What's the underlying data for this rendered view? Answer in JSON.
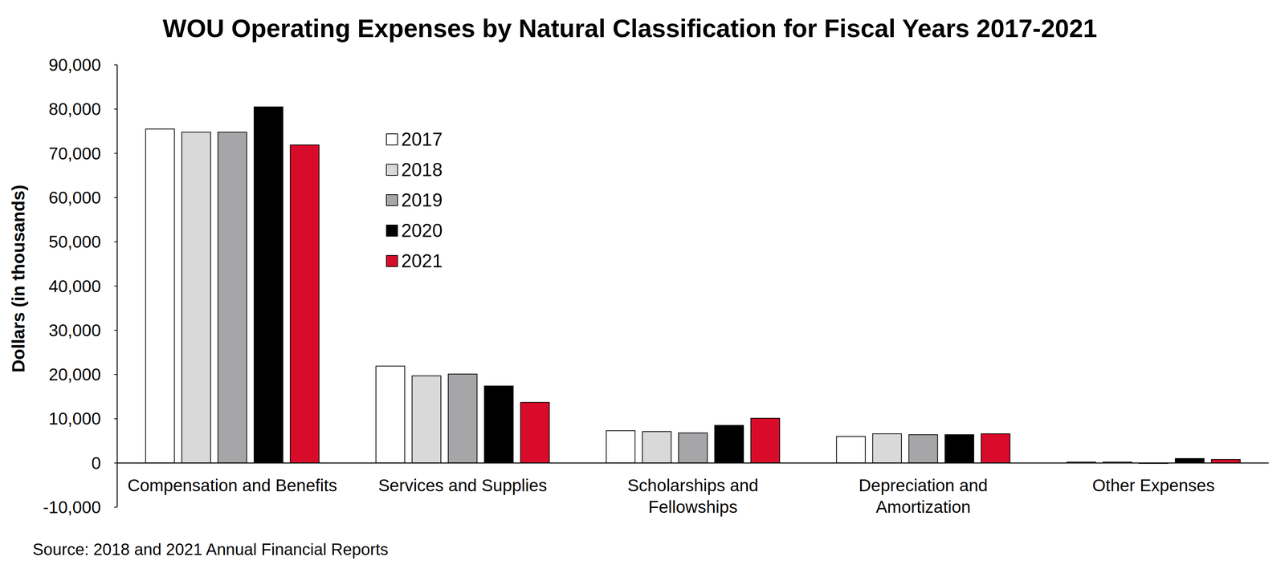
{
  "chart_data": {
    "type": "bar",
    "title": "WOU Operating Expenses by Natural Classification for Fiscal Years 2017-2021",
    "y_label": "Dollars (in thousands)",
    "source": "Source: 2018 and 2021 Annual Financial Reports",
    "categories": [
      "Compensation and Benefits",
      "Services and Supplies",
      "Scholarships and Fellowships",
      "Depreciation and Amortization",
      "Other Expenses"
    ],
    "series": [
      {
        "name": "2017",
        "color": "#ffffff",
        "values": [
          75500,
          21900,
          7300,
          6000,
          200
        ]
      },
      {
        "name": "2018",
        "color": "#d9d9d9",
        "values": [
          74800,
          19700,
          7100,
          6600,
          200
        ]
      },
      {
        "name": "2019",
        "color": "#a6a6a8",
        "values": [
          74800,
          20100,
          6800,
          6400,
          -100
        ]
      },
      {
        "name": "2020",
        "color": "#000000",
        "values": [
          80500,
          17400,
          8500,
          6400,
          1000
        ]
      },
      {
        "name": "2021",
        "color": "#d90b2a",
        "values": [
          71900,
          13700,
          10100,
          6600,
          800
        ]
      }
    ],
    "ylim": [
      -10000,
      90000
    ],
    "yticks": [
      {
        "value": -10000,
        "label": "-10,000"
      },
      0,
      {
        "value": 10000,
        "label": "10,000"
      },
      {
        "value": 20000,
        "label": "20,000"
      },
      {
        "value": 30000,
        "label": "30,000"
      },
      {
        "value": 40000,
        "label": "40,000"
      },
      {
        "value": 50000,
        "label": "50,000"
      },
      {
        "value": 60000,
        "label": "60,000"
      },
      {
        "value": 70000,
        "label": "70,000"
      },
      {
        "value": 80000,
        "label": "80,000"
      },
      {
        "value": 90000,
        "label": "90,000"
      }
    ],
    "grid": false,
    "legend": "top-left"
  }
}
